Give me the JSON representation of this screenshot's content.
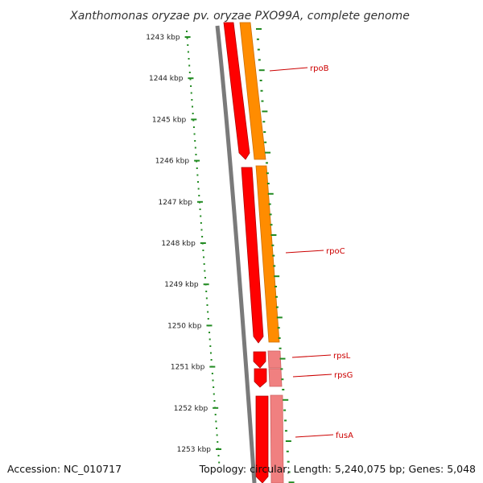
{
  "title": "Xanthomonas oryzae pv. oryzae PXO99A, complete genome",
  "footer": {
    "accession": "Accession: NC_010717",
    "summary": "Topology: circular; Length: 5,240,075 bp; Genes: 5,048"
  },
  "ticks": [
    "1243 kbp",
    "1244 kbp",
    "1245 kbp",
    "1246 kbp",
    "1247 kbp",
    "1248 kbp",
    "1249 kbp",
    "1250 kbp",
    "1251 kbp",
    "1252 kbp",
    "1253 kbp"
  ],
  "genes": [
    {
      "name": "rpoB",
      "color": "#cc0000"
    },
    {
      "name": "rpoC",
      "color": "#cc0000"
    },
    {
      "name": "rpsL",
      "color": "#cc0000"
    },
    {
      "name": "rpsG",
      "color": "#cc0000"
    },
    {
      "name": "fusA",
      "color": "#cc0000"
    }
  ],
  "colors": {
    "backbone": "#7a7a7a",
    "gene_red": "#ff0000",
    "gene_red_dark": "#b00000",
    "gene_orange": "#ff8c00",
    "gene_pink": "#f08080",
    "tick_green": "#228b22",
    "label_red": "#cc0000"
  }
}
